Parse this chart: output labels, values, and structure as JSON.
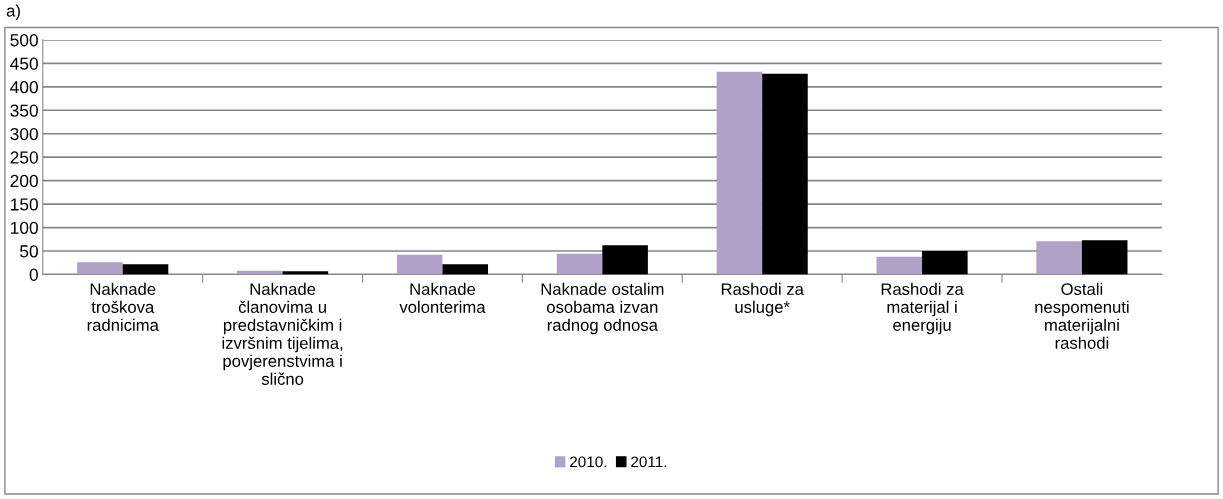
{
  "chart_data": {
    "type": "bar",
    "categories": [
      "Naknade\ntroškova\nradnicima",
      "Naknade\nčlanovima u\npredstavničkim i\nizvršnim tijelima,\npovjerenstvima i\nslično",
      "Naknade\nvolonterima",
      "Naknade ostalim\nosobama izvan\nradnog odnosa",
      "Rashodi za\nusluge*",
      "Rashodi za\nmaterijal i\nenergiju",
      "Ostali\nnespomenuti\nmaterijalni\nrashodi"
    ],
    "series": [
      {
        "name": "2010.",
        "color": "#b1a0c7",
        "values": [
          26,
          8,
          42,
          44,
          432,
          38,
          71
        ]
      },
      {
        "name": "2011.",
        "color": "#000000",
        "values": [
          22,
          7,
          22,
          62,
          428,
          50,
          73
        ]
      }
    ],
    "ylim": [
      0,
      500
    ],
    "yticks": [
      0,
      50,
      100,
      150,
      200,
      250,
      300,
      350,
      400,
      450,
      500
    ],
    "grid": "y",
    "legend": "bottom",
    "annotations": [
      "a)"
    ]
  }
}
